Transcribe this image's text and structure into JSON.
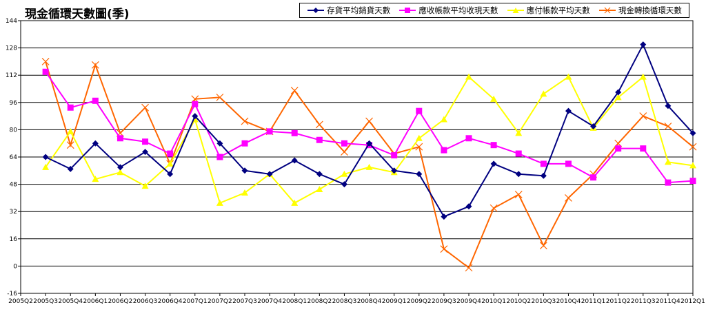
{
  "chart_data": {
    "type": "line",
    "title": "現金循環天數圖(季)",
    "categories": [
      "2005Q2",
      "2005Q3",
      "2005Q4",
      "2006Q1",
      "2006Q2",
      "2006Q3",
      "2006Q4",
      "2007Q1",
      "2007Q2",
      "2007Q3",
      "2007Q4",
      "2008Q1",
      "2008Q2",
      "2008Q3",
      "2008Q4",
      "2009Q1",
      "2009Q2",
      "2009Q3",
      "2009Q4",
      "2010Q1",
      "2010Q2",
      "2010Q3",
      "2010Q4",
      "2011Q1",
      "2011Q2",
      "2011Q3",
      "2011Q4",
      "2012Q1"
    ],
    "ylim": [
      -16,
      144
    ],
    "yticks": [
      -16,
      0,
      16,
      32,
      48,
      64,
      80,
      96,
      112,
      128,
      144
    ],
    "grid": true,
    "legend_position": "top-right",
    "series": [
      {
        "name": "存貨平均銷貨天數",
        "color": "#000080",
        "marker": "diamond",
        "values": [
          null,
          64,
          57,
          72,
          58,
          67,
          54,
          88,
          72,
          56,
          54,
          62,
          54,
          48,
          72,
          56,
          54,
          29,
          35,
          60,
          54,
          53,
          91,
          82,
          102,
          130,
          94,
          78
        ]
      },
      {
        "name": "應收帳款平均收現天數",
        "color": "#ff00ff",
        "marker": "square",
        "values": [
          null,
          114,
          93,
          97,
          75,
          73,
          66,
          95,
          64,
          72,
          79,
          78,
          74,
          72,
          71,
          65,
          91,
          68,
          75,
          71,
          66,
          60,
          60,
          52,
          69,
          69,
          49,
          50
        ]
      },
      {
        "name": "應付帳款平均天數",
        "color": "#ffff00",
        "marker": "triangle",
        "values": [
          null,
          58,
          79,
          51,
          55,
          47,
          60,
          86,
          37,
          43,
          54,
          37,
          45,
          54,
          58,
          55,
          75,
          86,
          111,
          98,
          78,
          101,
          111,
          81,
          99,
          111,
          61,
          59
        ]
      },
      {
        "name": "現金轉換循環天數",
        "color": "#ff6600",
        "marker": "x",
        "values": [
          null,
          120,
          71,
          118,
          78,
          93,
          60,
          98,
          99,
          85,
          79,
          103,
          83,
          67,
          85,
          66,
          70,
          10,
          -1,
          34,
          42,
          12,
          40,
          54,
          72,
          88,
          82,
          70
        ]
      }
    ]
  }
}
